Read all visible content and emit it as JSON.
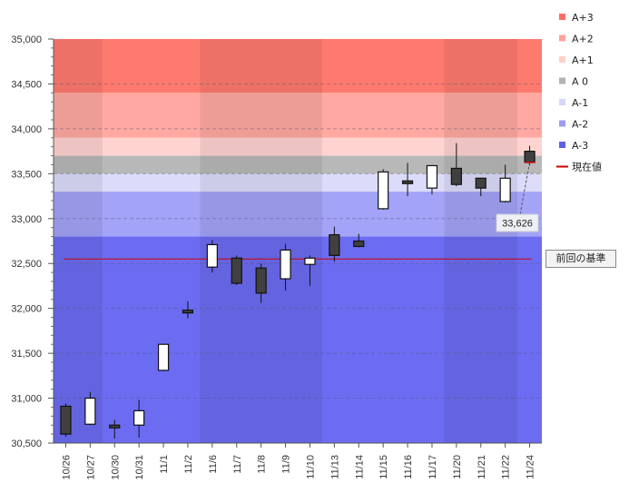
{
  "chart_data": {
    "type": "candlestick",
    "ylim": [
      30500,
      35000
    ],
    "yticks": [
      30500,
      31000,
      31500,
      32000,
      32500,
      33000,
      33500,
      34000,
      34500,
      35000
    ],
    "ytick_labels": [
      "30,500",
      "31,000",
      "31,500",
      "32,000",
      "32,500",
      "33,000",
      "33,500",
      "34,000",
      "34,500",
      "35,000"
    ],
    "categories": [
      "10/26",
      "10/27",
      "10/30",
      "10/31",
      "11/1",
      "11/2",
      "11/6",
      "11/7",
      "11/8",
      "11/9",
      "11/10",
      "11/13",
      "11/14",
      "11/15",
      "11/16",
      "11/17",
      "11/20",
      "11/21",
      "11/22",
      "11/24"
    ],
    "candles": [
      {
        "date": "10/26",
        "open": 30910,
        "high": 30940,
        "low": 30570,
        "close": 30600
      },
      {
        "date": "10/27",
        "open": 30710,
        "high": 31070,
        "low": 30700,
        "close": 31000
      },
      {
        "date": "10/30",
        "open": 30700,
        "high": 30760,
        "low": 30550,
        "close": 30670
      },
      {
        "date": "10/31",
        "open": 30700,
        "high": 30980,
        "low": 30560,
        "close": 30860
      },
      {
        "date": "11/1",
        "open": 31310,
        "high": 31600,
        "low": 31300,
        "close": 31600
      },
      {
        "date": "11/2",
        "open": 31980,
        "high": 32080,
        "low": 31890,
        "close": 31950
      },
      {
        "date": "11/6",
        "open": 32460,
        "high": 32760,
        "low": 32400,
        "close": 32710
      },
      {
        "date": "11/7",
        "open": 32560,
        "high": 32590,
        "low": 32260,
        "close": 32280
      },
      {
        "date": "11/8",
        "open": 32450,
        "high": 32500,
        "low": 32060,
        "close": 32170
      },
      {
        "date": "11/9",
        "open": 32330,
        "high": 32720,
        "low": 32200,
        "close": 32650
      },
      {
        "date": "11/10",
        "open": 32490,
        "high": 32590,
        "low": 32250,
        "close": 32560
      },
      {
        "date": "11/13",
        "open": 32820,
        "high": 32910,
        "low": 32520,
        "close": 32590
      },
      {
        "date": "11/14",
        "open": 32750,
        "high": 32830,
        "low": 32680,
        "close": 32690
      },
      {
        "date": "11/15",
        "open": 33110,
        "high": 33550,
        "low": 33100,
        "close": 33520
      },
      {
        "date": "11/16",
        "open": 33420,
        "high": 33620,
        "low": 33250,
        "close": 33390
      },
      {
        "date": "11/17",
        "open": 33340,
        "high": 33590,
        "low": 33270,
        "close": 33590
      },
      {
        "date": "11/20",
        "open": 33560,
        "high": 33840,
        "low": 33360,
        "close": 33380
      },
      {
        "date": "11/21",
        "open": 33450,
        "high": 33450,
        "low": 33250,
        "close": 33340
      },
      {
        "date": "11/22",
        "open": 33190,
        "high": 33600,
        "low": 33180,
        "close": 33450
      },
      {
        "date": "11/24",
        "open": 33750,
        "high": 33810,
        "low": 33590,
        "close": 33626
      }
    ],
    "bands": [
      {
        "name": "A+3",
        "from": 34400,
        "to": 35000,
        "color": "#ff7a6e"
      },
      {
        "name": "A+2",
        "from": 33900,
        "to": 34400,
        "color": "#ffa9a2"
      },
      {
        "name": "A+1",
        "from": 33700,
        "to": 33900,
        "color": "#ffd3d0"
      },
      {
        "name": "A 0",
        "from": 33500,
        "to": 33700,
        "color": "#b8b8b8"
      },
      {
        "name": "A-1",
        "from": 33300,
        "to": 33500,
        "color": "#dcdcfa"
      },
      {
        "name": "A-2",
        "from": 32800,
        "to": 33300,
        "color": "#a3a3f7"
      },
      {
        "name": "A-3",
        "from": 30500,
        "to": 32800,
        "color": "#6c6cf2"
      }
    ],
    "legend": [
      {
        "label": "A+3",
        "color": "#ff6e62",
        "kind": "swatch"
      },
      {
        "label": "A+2",
        "color": "#ffa39c",
        "kind": "swatch"
      },
      {
        "label": "A+1",
        "color": "#ffcfcb",
        "kind": "swatch"
      },
      {
        "label": "A 0",
        "color": "#b3b3b3",
        "kind": "swatch"
      },
      {
        "label": "A-1",
        "color": "#d6d6f8",
        "kind": "swatch"
      },
      {
        "label": "A-2",
        "color": "#9c9cf4",
        "kind": "swatch"
      },
      {
        "label": "A-3",
        "color": "#5e5eee",
        "kind": "swatch"
      },
      {
        "label": "現在値",
        "color": "#cc0000",
        "kind": "line"
      }
    ],
    "legend_position": "right",
    "base_line": {
      "value": 32550,
      "label": "前回の基準",
      "color": "#d40000"
    },
    "current_value": {
      "value": 33626,
      "label": "33,626"
    },
    "grid": {
      "horizontal": true,
      "dashed": true
    },
    "colors": {
      "up_body": "#ffffff",
      "down_body": "#404040",
      "outline": "#111111"
    }
  }
}
